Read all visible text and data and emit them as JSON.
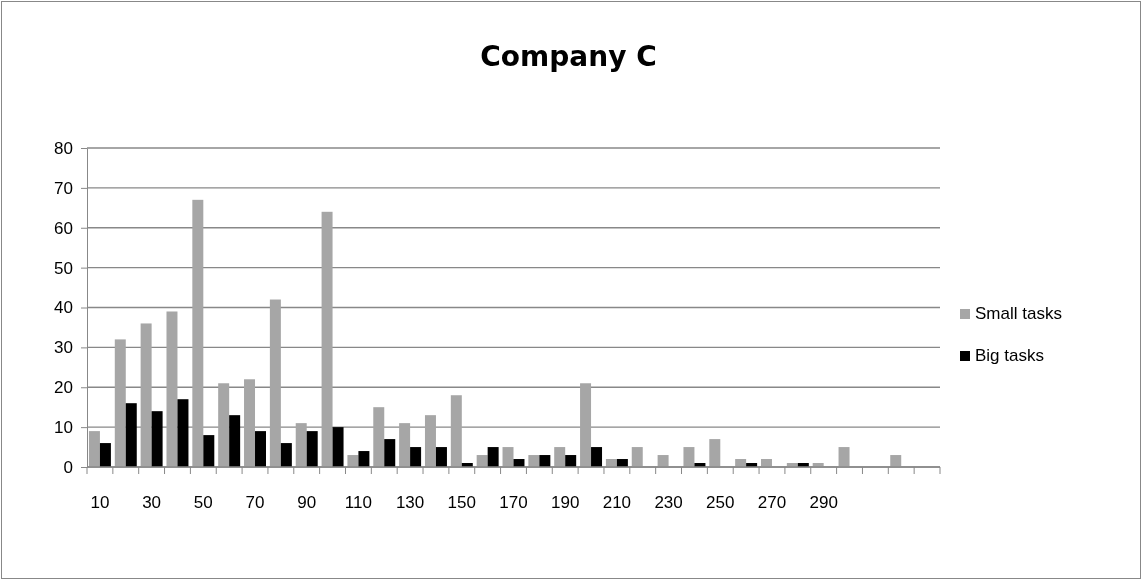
{
  "chart_data": {
    "type": "bar",
    "title": "Company C",
    "categories": [
      "10",
      null,
      "30",
      null,
      "50",
      null,
      "70",
      null,
      "90",
      null,
      "110",
      null,
      "130",
      null,
      "150",
      null,
      "170",
      null,
      "190",
      null,
      "210",
      null,
      "230",
      null,
      "250",
      null,
      "270",
      null,
      "290",
      null,
      null,
      null,
      null
    ],
    "series": [
      {
        "name": "Small tasks",
        "color": "#a6a6a6",
        "values": [
          9,
          32,
          36,
          39,
          67,
          21,
          22,
          42,
          11,
          64,
          3,
          15,
          11,
          13,
          18,
          3,
          5,
          3,
          5,
          21,
          2,
          5,
          3,
          5,
          7,
          2,
          2,
          1,
          1,
          5,
          0,
          3,
          0
        ]
      },
      {
        "name": "Big tasks",
        "color": "#000000",
        "values": [
          6,
          16,
          14,
          17,
          8,
          13,
          9,
          6,
          9,
          10,
          4,
          7,
          5,
          5,
          1,
          5,
          2,
          3,
          3,
          5,
          2,
          0,
          0,
          1,
          0,
          1,
          0,
          1,
          0,
          0,
          0,
          0,
          0
        ]
      }
    ],
    "ylim": [
      0,
      80
    ],
    "yticks": [
      0,
      10,
      20,
      30,
      40,
      50,
      60,
      70,
      80
    ],
    "grid": "y",
    "legend": "right"
  }
}
